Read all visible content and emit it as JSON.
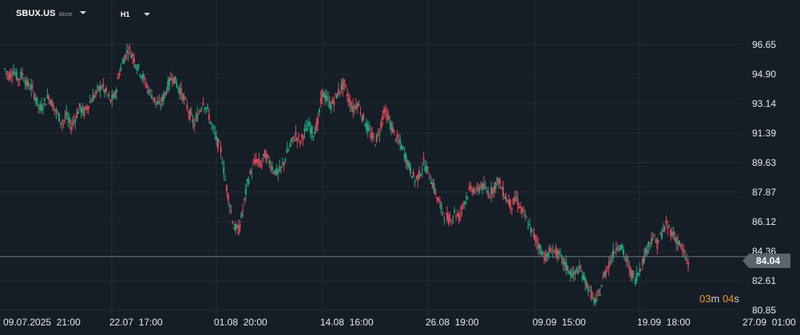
{
  "toolbar": {
    "symbol": "SBUX.US",
    "symbol_type": "Akcie",
    "timeframe": "H1"
  },
  "current_price_label": "84.04",
  "countdown": {
    "minutes": "03",
    "minutes_unit": "m",
    "seconds": "04",
    "seconds_unit": "s"
  },
  "colors": {
    "up": "#1fa67a",
    "down": "#d84a5c",
    "background": "#151d26",
    "grid": "#222c36",
    "price_line": "#6b7580"
  },
  "chart_data": {
    "type": "candlestick",
    "title": "",
    "y_ticks": [
      "96.65",
      "94.90",
      "93.14",
      "91.39",
      "89.63",
      "87.87",
      "86.12",
      "84.36",
      "82.61",
      "80.85"
    ],
    "x_ticks": [
      "09.07.2025  21:00",
      "22.07  17:00",
      "01.08  20:00",
      "14.08  16:00",
      "26.08  19:00",
      "09.09  15:00",
      "19.09  18:00",
      "27.09  01:00"
    ],
    "ylim": [
      80.2,
      98.2
    ],
    "current_price": 84.04,
    "series": [
      {
        "values": [
          95.2,
          94.8,
          95.1,
          94.6,
          94.9,
          94.3,
          94.1,
          93.5,
          92.8,
          93.2,
          93.6,
          93.0,
          92.5,
          92.0,
          92.4,
          91.8,
          92.3,
          92.9,
          92.6,
          93.1,
          93.5,
          93.9,
          94.2,
          93.8,
          93.3,
          93.6,
          95.0,
          95.8,
          96.4,
          96.0,
          95.4,
          94.9,
          94.3,
          93.8,
          93.4,
          93.0,
          93.5,
          94.2,
          94.8,
          94.3,
          93.8,
          93.2,
          92.5,
          91.9,
          92.6,
          93.3,
          92.7,
          91.8,
          91.0,
          90.4,
          88.6,
          87.2,
          85.8,
          85.6,
          86.8,
          88.4,
          89.2,
          89.8,
          89.5,
          90.1,
          89.7,
          89.2,
          89.0,
          89.4,
          90.2,
          90.8,
          91.3,
          90.9,
          91.5,
          91.8,
          91.4,
          92.0,
          93.8,
          93.4,
          93.0,
          93.5,
          94.0,
          94.3,
          93.4,
          92.8,
          93.2,
          92.5,
          91.8,
          91.3,
          90.9,
          91.5,
          92.8,
          92.2,
          91.6,
          91.0,
          90.6,
          89.9,
          89.2,
          88.6,
          88.9,
          89.6,
          89.1,
          88.4,
          87.6,
          86.9,
          86.4,
          86.2,
          86.7,
          86.4,
          87.2,
          87.8,
          88.1,
          87.9,
          88.3,
          88.0,
          87.8,
          88.2,
          88.6,
          87.9,
          87.4,
          87.1,
          87.5,
          86.9,
          86.4,
          85.8,
          85.3,
          84.8,
          84.2,
          84.0,
          84.5,
          84.3,
          84.0,
          83.6,
          83.2,
          82.9,
          83.3,
          83.0,
          82.4,
          81.8,
          81.3,
          82.0,
          83.0,
          83.6,
          84.2,
          84.8,
          84.5,
          83.8,
          83.1,
          82.7,
          83.3,
          84.0,
          84.8,
          85.2,
          84.8,
          85.4,
          85.9,
          85.6,
          85.2,
          84.8,
          84.2,
          83.6
        ]
      }
    ]
  }
}
